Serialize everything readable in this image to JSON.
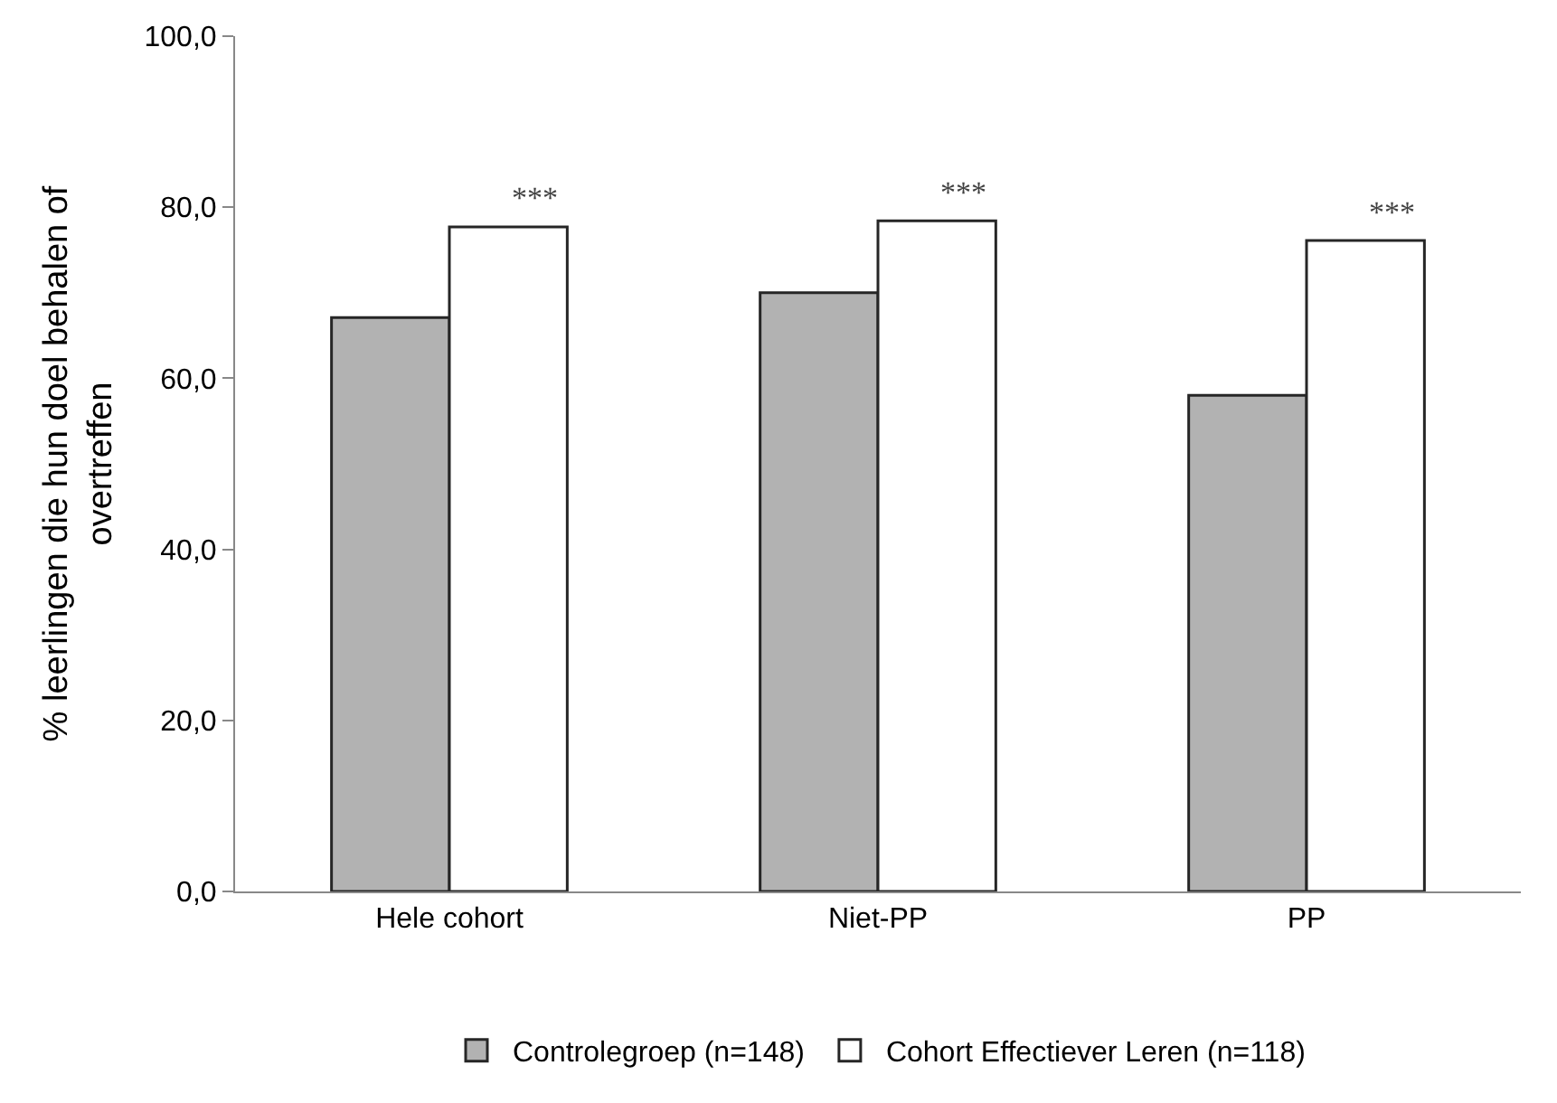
{
  "chart_data": {
    "type": "bar",
    "ylabel": "% leerlingen die hun doel behalen of overtreffen",
    "categories": [
      "Hele cohort",
      "Niet-PP",
      "PP"
    ],
    "series": [
      {
        "name": "Controlegroep (n=148)",
        "color": "#b2b2b2",
        "values": [
          67.1,
          70.0,
          58.0
        ]
      },
      {
        "name": "Cohort Effectiever Leren (n=118)",
        "color": "#ffffff",
        "values": [
          77.7,
          78.4,
          76.1
        ]
      }
    ],
    "ylim": [
      0,
      100
    ],
    "yticks": [
      {
        "value": 0,
        "label": "0,0"
      },
      {
        "value": 20,
        "label": "20,0"
      },
      {
        "value": 40,
        "label": "40,0"
      },
      {
        "value": 60,
        "label": "60,0"
      },
      {
        "value": 80,
        "label": "80,0"
      },
      {
        "value": 100,
        "label": "100,0"
      }
    ],
    "annotations": [
      {
        "text": "***",
        "x": "Hele cohort",
        "y": 77.7
      },
      {
        "text": "***",
        "x": "Niet-PP",
        "y": 78.4
      },
      {
        "text": "***",
        "x": "PP",
        "y": 76.1
      }
    ],
    "grid": false,
    "legend": "bottom"
  }
}
